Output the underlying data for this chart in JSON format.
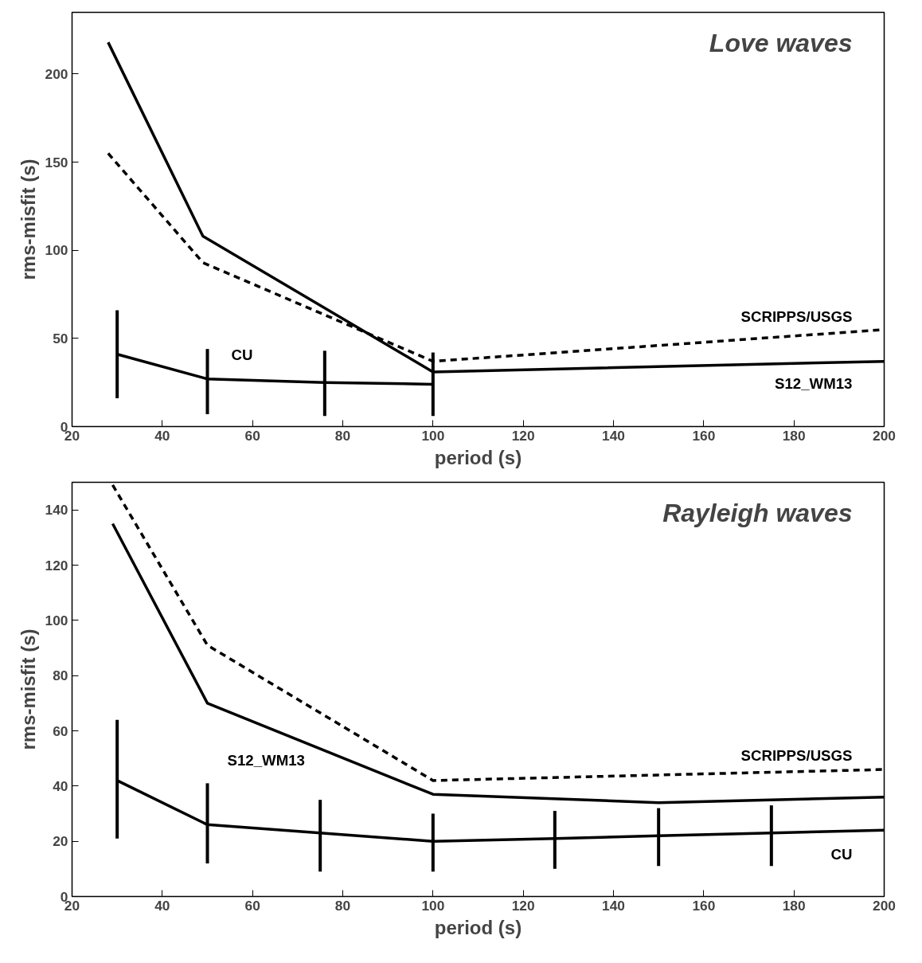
{
  "chart_data": [
    {
      "type": "line",
      "title": "Love waves",
      "xlabel": "period (s)",
      "ylabel": "rms-misfit (s)",
      "xlim": [
        20,
        200
      ],
      "ylim": [
        0,
        235
      ],
      "xticks": [
        20,
        40,
        60,
        80,
        100,
        120,
        140,
        160,
        180,
        200
      ],
      "yticks": [
        0,
        50,
        100,
        150,
        200
      ],
      "grid": false,
      "series": [
        {
          "name": "S12_WM13",
          "color": "#000000",
          "line_style": "solid",
          "x": [
            28,
            49,
            100,
            200
          ],
          "values": [
            218,
            108,
            31,
            37
          ]
        },
        {
          "name": "SCRIPPS/USGS",
          "color": "#000000",
          "line_style": "dashed",
          "x": [
            28,
            49,
            100,
            200
          ],
          "values": [
            155,
            93,
            37,
            55
          ]
        },
        {
          "name": "CU",
          "color": "#000000",
          "line_style": "solid",
          "x": [
            30,
            50,
            76,
            100
          ],
          "values": [
            41,
            27,
            25,
            24
          ],
          "errors": [
            [
              16,
              66
            ],
            [
              7,
              44
            ],
            [
              6,
              43
            ],
            [
              6,
              42
            ]
          ]
        }
      ]
    },
    {
      "type": "line",
      "title": "Rayleigh waves",
      "xlabel": "period (s)",
      "ylabel": "rms-misfit (s)",
      "xlim": [
        20,
        200
      ],
      "ylim": [
        0,
        150
      ],
      "xticks": [
        20,
        40,
        60,
        80,
        100,
        120,
        140,
        160,
        180,
        200
      ],
      "yticks": [
        0,
        20,
        40,
        60,
        80,
        100,
        120,
        140
      ],
      "grid": false,
      "series": [
        {
          "name": "SCRIPPS/USGS",
          "color": "#000000",
          "line_style": "dashed",
          "x": [
            29,
            50,
            100,
            200
          ],
          "values": [
            149,
            91,
            42,
            46
          ]
        },
        {
          "name": "S12_WM13",
          "color": "#000000",
          "line_style": "solid",
          "x": [
            29,
            50,
            100,
            150,
            200
          ],
          "values": [
            135,
            70,
            37,
            34,
            36
          ]
        },
        {
          "name": "CU",
          "color": "#000000",
          "line_style": "solid",
          "x": [
            30,
            50,
            75,
            100,
            127,
            150,
            175,
            200
          ],
          "values": [
            42,
            26,
            23,
            20,
            21,
            22,
            23,
            24
          ],
          "errors": [
            [
              21,
              64
            ],
            [
              12,
              41
            ],
            [
              9,
              35
            ],
            [
              9,
              30
            ],
            [
              10,
              31
            ],
            [
              11,
              32
            ],
            [
              11,
              33
            ],
            null
          ]
        }
      ]
    }
  ]
}
